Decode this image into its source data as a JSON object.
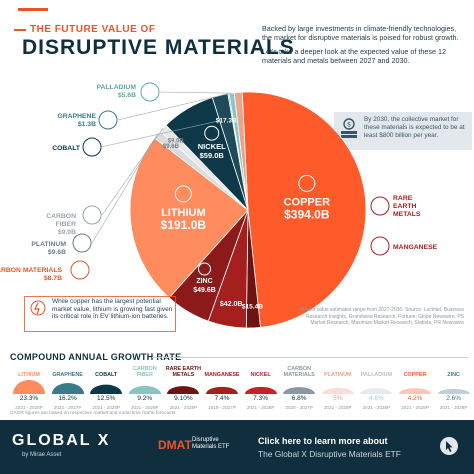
{
  "header": {
    "kicker": "THE FUTURE VALUE OF",
    "title": "DISRUPTIVE MATERIALS",
    "intro_1": "Backed by large investments in climate-friendly technologies, the market for disruptive materials is poised for robust growth.",
    "intro_2": "Let's take a deeper look at the expected value of these 12 materials and metals between 2027 and 2030.",
    "callout": "By 2030, the collective market for these materials is expected to be at least $800 billion per year."
  },
  "note": "While copper has the largest potential market value, lithium is growing fast given its critical role in EV lithium-ion batteries.",
  "source": "Market value estimates range from 2027-2030. Source: Lucintel, Business Research Insights, Grandview Research, Fortune, Globe Newswire, PS Market Research, Maximize Market Research, Statista, PR Newswire",
  "colors": {
    "copper": "#ff5a2a",
    "lithium": "#ff8c5f",
    "nickel": "#0d3848",
    "zinc": "#8c1a1a",
    "manganese": "#a51f1f",
    "rare_earth": "#6f1212",
    "accent": "#e8552a",
    "navy": "#0f2f3f"
  },
  "chart_data": [
    {
      "type": "pie",
      "title": "",
      "slices": [
        {
          "name": "COPPER",
          "value": 394.0,
          "label": "$394.0B",
          "color": "#ff5a2a"
        },
        {
          "name": "RARE EARTH METALS",
          "value": 15.4,
          "label": "$15.4B",
          "color": "#6f1212"
        },
        {
          "name": "MANGANESE",
          "value": 42.0,
          "label": "$42.0B",
          "color": "#a51f1f"
        },
        {
          "name": "ZINC",
          "value": 49.6,
          "label": "$49.6B",
          "color": "#8c1a1a"
        },
        {
          "name": "LITHIUM",
          "value": 191.0,
          "label": "$191.0B",
          "color": "#ff8c5f"
        },
        {
          "name": "PLATINUM",
          "value": 9.6,
          "label": "$9.6B",
          "color": "#dcdcdc"
        },
        {
          "name": "CARBON FIBER",
          "value": 9.0,
          "label": "$9.0B",
          "color": "#e7e7e7"
        },
        {
          "name": "NICKEL",
          "value": 59.0,
          "label": "$59.0B",
          "color": "#0d3848"
        },
        {
          "name": "COBALT",
          "value": 17.3,
          "label": "$17.3B",
          "color": "#1e4a5a"
        },
        {
          "name": "GRAPHENE",
          "value": 1.3,
          "label": "$1.3B",
          "color": "#3b7a8a"
        },
        {
          "name": "PALLADIUM",
          "value": 5.6,
          "label": "$5.6B",
          "color": "#86c5c2"
        },
        {
          "name": "CARBON MATERIALS",
          "value": 8.7,
          "label": "$8.7B",
          "color": "#e9a48b"
        }
      ]
    },
    {
      "type": "table",
      "title": "COMPOUND ANNUAL GROWTH RATE",
      "footnote": "CAGR figures are based on respective market and metal time frame forecasts",
      "columns": [
        {
          "name": "LITHIUM",
          "value": "23.3%",
          "years": "2021 - 2028P",
          "color": "#ff8c5f"
        },
        {
          "name": "GRAPHENE",
          "value": "16.2%",
          "years": "2022 - 2027P",
          "color": "#3b7a8a"
        },
        {
          "name": "COBALT",
          "value": "12.5%",
          "years": "2021 - 2028P",
          "color": "#0d3848"
        },
        {
          "name": "CARBON FIBER",
          "value": "9.2%",
          "years": "2021 - 2028P",
          "color": "#86c5c2"
        },
        {
          "name": "RARE EARTH METALS",
          "value": "9.10%",
          "years": "2021 - 2028P",
          "color": "#6f1212"
        },
        {
          "name": "MANGANESE",
          "value": "7.4%",
          "years": "2019 - 2027P",
          "color": "#a51f1f"
        },
        {
          "name": "NICKEL",
          "value": "7.3%",
          "years": "2021 - 2028P",
          "color": "#c81f2a"
        },
        {
          "name": "CARBON MATERIALS",
          "value": "6.8%",
          "years": "2020 - 2027P",
          "color": "#8a98a3"
        },
        {
          "name": "PLATINUM",
          "value": "5%",
          "years": "2021 - 2028P",
          "color": "#e9a48b"
        },
        {
          "name": "PALLADIUM",
          "value": "4.6%",
          "years": "2021 - 2028P",
          "color": "#b9c3c9"
        },
        {
          "name": "COPPER",
          "value": "4.2%",
          "years": "2021 - 2028P",
          "color": "#ff5a2a"
        },
        {
          "name": "ZINC",
          "value": "2.6%",
          "years": "2021 - 2028P",
          "color": "#3b7a8a"
        }
      ]
    }
  ],
  "footer": {
    "logo": "GLOBAL X",
    "logo_sub": "by Mirae Asset",
    "fund": "DMAT",
    "fund_sub": "Disruptive Materials ETF",
    "cta_1": "Click here to learn more about",
    "cta_2": "The Global X Disruptive Materials ETF"
  }
}
